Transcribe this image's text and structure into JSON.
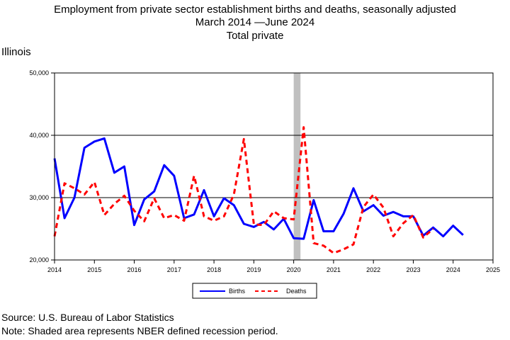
{
  "header": {
    "line1": "Employment from private sector establishment births and deaths, seasonally adjusted",
    "line2": "March 2014 —June 2024",
    "line3": "Total private",
    "region": "Illinois"
  },
  "footer": {
    "source": "Source: U.S. Bureau of Labor Statistics",
    "note": "Note: Shaded area represents NBER defined recession period."
  },
  "chart_data": {
    "type": "line",
    "title": "Employment from private sector establishment births and deaths, seasonally adjusted",
    "xlim": [
      2014,
      2025
    ],
    "ylim": [
      20000,
      50000
    ],
    "x_ticks": [
      "2014",
      "2015",
      "2016",
      "2017",
      "2018",
      "2019",
      "2020",
      "2021",
      "2022",
      "2023",
      "2024",
      "2025"
    ],
    "y_ticks": [
      "20,000",
      "30,000",
      "40,000",
      "50,000"
    ],
    "grid": "horizontal at 30,000 and 40,000",
    "recession": [
      2020.0,
      2020.17
    ],
    "legend": "bottom-center",
    "colors": {
      "births": "#0000ff",
      "deaths": "#ff0000",
      "recession": "#c0c0c0"
    },
    "series": [
      {
        "name": "Births",
        "style": "solid",
        "x": [
          2014.0,
          2014.25,
          2014.5,
          2014.75,
          2015.0,
          2015.25,
          2015.5,
          2015.75,
          2016.0,
          2016.25,
          2016.5,
          2016.75,
          2017.0,
          2017.25,
          2017.5,
          2017.75,
          2018.0,
          2018.25,
          2018.5,
          2018.75,
          2019.0,
          2019.25,
          2019.5,
          2019.75,
          2020.0,
          2020.25,
          2020.5,
          2020.75,
          2021.0,
          2021.25,
          2021.5,
          2021.75,
          2022.0,
          2022.25,
          2022.5,
          2022.75,
          2023.0,
          2023.25,
          2023.5,
          2023.75,
          2024.0,
          2024.25
        ],
        "values": [
          36300,
          26700,
          30000,
          38000,
          39000,
          39500,
          34000,
          35000,
          25600,
          29700,
          31000,
          35200,
          33500,
          26700,
          27300,
          31200,
          27000,
          29900,
          28800,
          25800,
          25300,
          26100,
          24900,
          26600,
          23500,
          23400,
          29600,
          24600,
          24600,
          27400,
          31500,
          27800,
          28800,
          27100,
          27700,
          27000,
          27000,
          23900,
          25200,
          23800,
          25500,
          24000
        ]
      },
      {
        "name": "Deaths",
        "style": "dashed",
        "x": [
          2014.0,
          2014.25,
          2014.5,
          2014.75,
          2015.0,
          2015.25,
          2015.5,
          2015.75,
          2016.0,
          2016.25,
          2016.5,
          2016.75,
          2017.0,
          2017.25,
          2017.5,
          2017.75,
          2018.0,
          2018.25,
          2018.5,
          2018.75,
          2019.0,
          2019.25,
          2019.5,
          2019.75,
          2020.0,
          2020.25,
          2020.5,
          2020.75,
          2021.0,
          2021.25,
          2021.5,
          2021.75,
          2022.0,
          2022.25,
          2022.5,
          2022.75,
          2023.0,
          2023.25,
          2023.5
        ],
        "values": [
          23800,
          32300,
          31500,
          30500,
          32500,
          27200,
          29000,
          30300,
          27900,
          26200,
          29900,
          26700,
          27200,
          26300,
          33500,
          27000,
          26300,
          27000,
          30500,
          39400,
          25700,
          25600,
          27800,
          26700,
          26500,
          41300,
          22700,
          22300,
          21100,
          21700,
          22500,
          28500,
          30500,
          28400,
          23800,
          25900,
          27200,
          23600,
          25000
        ]
      }
    ]
  }
}
